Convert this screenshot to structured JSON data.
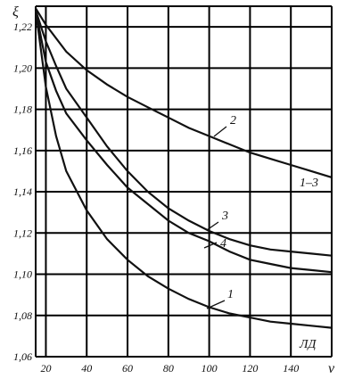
{
  "chart_data": {
    "type": "line",
    "title": "",
    "xlabel": "v",
    "ylabel": "ξ",
    "xlim": [
      15,
      160
    ],
    "ylim": [
      1.06,
      1.23
    ],
    "grid": true,
    "x_ticks": [
      20,
      40,
      60,
      80,
      100,
      120,
      140
    ],
    "x_tick_labels": [
      "20",
      "40",
      "60",
      "80",
      "100",
      "120",
      "140"
    ],
    "y_ticks": [
      1.06,
      1.08,
      1.1,
      1.12,
      1.14,
      1.16,
      1.18,
      1.2,
      1.22
    ],
    "y_tick_labels": [
      "1,06",
      "1,08",
      "1,10",
      "1,12",
      "1,14",
      "1,16",
      "1,18",
      "1,20",
      "1,22"
    ],
    "series": [
      {
        "name": "1",
        "x": [
          15,
          20,
          25,
          30,
          40,
          50,
          60,
          70,
          80,
          90,
          100,
          110,
          120,
          130,
          140,
          150,
          160
        ],
        "y": [
          1.228,
          1.191,
          1.167,
          1.15,
          1.131,
          1.117,
          1.107,
          1.099,
          1.093,
          1.088,
          1.084,
          1.081,
          1.079,
          1.077,
          1.076,
          1.075,
          1.074
        ]
      },
      {
        "name": "2",
        "x": [
          15,
          20,
          30,
          40,
          50,
          60,
          70,
          80,
          90,
          100,
          110,
          120,
          130,
          140,
          150,
          160
        ],
        "y": [
          1.229,
          1.221,
          1.208,
          1.199,
          1.192,
          1.186,
          1.181,
          1.176,
          1.171,
          1.167,
          1.163,
          1.159,
          1.156,
          1.153,
          1.15,
          1.147
        ]
      },
      {
        "name": "3",
        "x": [
          15,
          20,
          25,
          30,
          40,
          50,
          60,
          70,
          80,
          90,
          100,
          110,
          120,
          130,
          140,
          150,
          160
        ],
        "y": [
          1.228,
          1.213,
          1.201,
          1.19,
          1.176,
          1.162,
          1.15,
          1.14,
          1.132,
          1.126,
          1.121,
          1.117,
          1.114,
          1.112,
          1.111,
          1.11,
          1.109
        ]
      },
      {
        "name": "4",
        "x": [
          15,
          20,
          25,
          30,
          40,
          50,
          60,
          70,
          80,
          90,
          100,
          110,
          120,
          130,
          140,
          150,
          160
        ],
        "y": [
          1.228,
          1.203,
          1.189,
          1.178,
          1.165,
          1.153,
          1.142,
          1.134,
          1.126,
          1.12,
          1.116,
          1.111,
          1.107,
          1.105,
          1.103,
          1.102,
          1.101
        ]
      }
    ],
    "curve_labels": [
      {
        "series": "1",
        "text": "1"
      },
      {
        "series": "2",
        "text": "2"
      },
      {
        "series": "3",
        "text": "3"
      },
      {
        "series": "4",
        "text": "4"
      }
    ],
    "annotations": [
      "1–3",
      "ЛД"
    ]
  }
}
